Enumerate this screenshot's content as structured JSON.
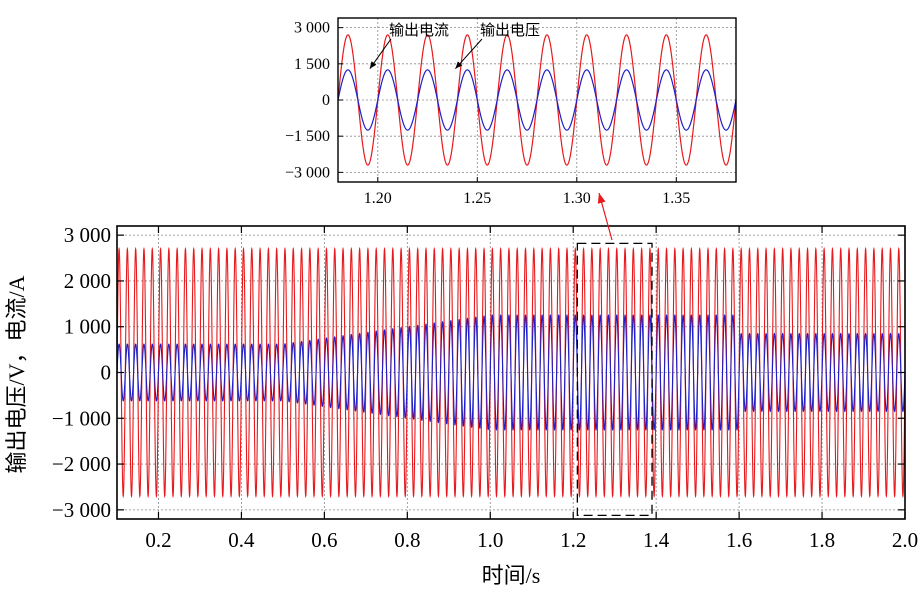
{
  "chart_data": [
    {
      "id": "main",
      "type": "line",
      "xlabel": "时间/s",
      "ylabel": "输出电压/V，电流/A",
      "xlim": [
        0.1,
        2.0
      ],
      "ylim": [
        -3200,
        3200
      ],
      "xticks": [
        0.2,
        0.4,
        0.6,
        0.8,
        1.0,
        1.2,
        1.4,
        1.6,
        1.8,
        2.0
      ],
      "xtick_labels": [
        "0.2",
        "0.4",
        "0.6",
        "0.8",
        "1.0",
        "1.2",
        "1.4",
        "1.6",
        "1.8",
        "2.0"
      ],
      "yticks": [
        3000,
        2000,
        1000,
        0,
        -1000,
        -2000,
        -3000
      ],
      "ytick_labels": [
        "3 000",
        "2 000",
        "1 000",
        "0",
        "−1 000",
        "−2 000",
        "−3 000"
      ],
      "grid": true,
      "frequency_hz": 50,
      "series": [
        {
          "color": "#e8191c",
          "segments": [
            {
              "x0": 0.1,
              "x1": 2.0,
              "amplitude": 2700
            }
          ]
        },
        {
          "color": "#1f1fc8",
          "segments": [
            {
              "x0": 0.1,
              "x1": 0.5,
              "amplitude_start": 620,
              "amplitude_end": 620
            },
            {
              "x0": 0.5,
              "x1": 1.0,
              "amplitude_start": 620,
              "amplitude_end": 1250
            },
            {
              "x0": 1.0,
              "x1": 1.6,
              "amplitude_start": 1250,
              "amplitude_end": 1250
            },
            {
              "x0": 1.6,
              "x1": 2.0,
              "amplitude_start": 850,
              "amplitude_end": 850
            }
          ]
        }
      ],
      "zoom_box": {
        "x": [
          1.21,
          1.39
        ],
        "y": [
          -3120,
          2820
        ]
      }
    },
    {
      "id": "inset",
      "type": "line",
      "xlim": [
        1.18,
        1.38
      ],
      "ylim": [
        -3400,
        3400
      ],
      "xticks": [
        1.2,
        1.25,
        1.3,
        1.35
      ],
      "xtick_labels": [
        "1.20",
        "1.25",
        "1.30",
        "1.35"
      ],
      "yticks": [
        3000,
        1500,
        0,
        -1500,
        -3000
      ],
      "ytick_labels": [
        "3 000",
        "1 500",
        "0",
        "−1 500",
        "−3 000"
      ],
      "grid": true,
      "frequency_hz": 50,
      "series": [
        {
          "color": "#e8191c",
          "amplitude": 2700
        },
        {
          "color": "#1f1fc8",
          "amplitude": 1250
        }
      ],
      "annotations": [
        {
          "text": "输出电流",
          "x": 1.196,
          "y": 1300
        },
        {
          "text": "输出电压",
          "x": 1.239,
          "y": 1300
        }
      ]
    }
  ]
}
